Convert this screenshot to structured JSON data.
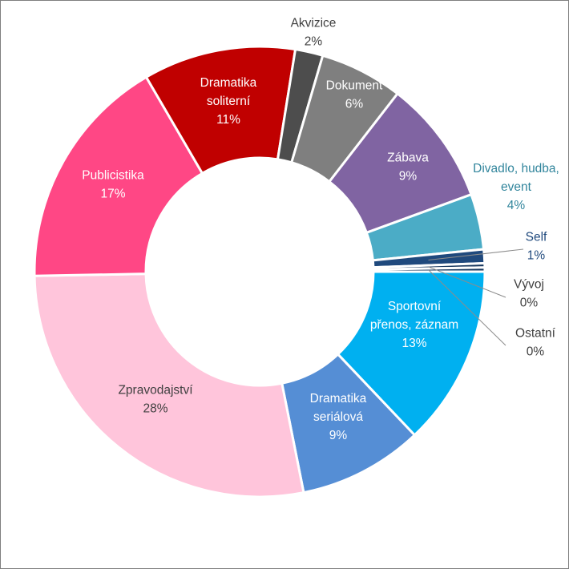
{
  "chart_data": {
    "type": "donut",
    "title": "",
    "start_angle_deg": 90,
    "direction": "clockwise",
    "slices": [
      {
        "label": "Sportovní přenos, záznam",
        "lines": [
          "Sportovní",
          "přenos, záznam"
        ],
        "value": 13,
        "value_label": "13%",
        "color": "#00b0f0",
        "label_color": "#ffffff"
      },
      {
        "label": "Dramatika seriálová",
        "lines": [
          "Dramatika",
          "seriálová"
        ],
        "value": 9,
        "value_label": "9%",
        "color": "#558ed5",
        "label_color": "#ffffff"
      },
      {
        "label": "Zpravodajství",
        "lines": [
          "Zpravodajství"
        ],
        "value": 28,
        "value_label": "28%",
        "color": "#ffc5db",
        "label_color": "#404040"
      },
      {
        "label": "Publicistika",
        "lines": [
          "Publicistika"
        ],
        "value": 17,
        "value_label": "17%",
        "color": "#ff4785",
        "label_color": "#ffffff"
      },
      {
        "label": "Dramatika soliterní",
        "lines": [
          "Dramatika",
          "soliterní"
        ],
        "value": 11,
        "value_label": "11%",
        "color": "#c00000",
        "label_color": "#ffffff"
      },
      {
        "label": "Akvizice",
        "lines": [
          "Akvizice"
        ],
        "value": 2,
        "value_label": "2%",
        "color": "#4d4d4d",
        "label_color": "#404040"
      },
      {
        "label": "Dokument",
        "lines": [
          "Dokument"
        ],
        "value": 6,
        "value_label": "6%",
        "color": "#7f7f7f",
        "label_color": "#ffffff"
      },
      {
        "label": "Zábava",
        "lines": [
          "Zábava"
        ],
        "value": 9,
        "value_label": "9%",
        "color": "#8064a2",
        "label_color": "#ffffff"
      },
      {
        "label": "Divadlo, hudba, event",
        "lines": [
          "Divadlo, hudba,",
          "event"
        ],
        "value": 4,
        "value_label": "4%",
        "color": "#4bacc6",
        "label_color": "#31859c"
      },
      {
        "label": "Self",
        "lines": [
          "Self"
        ],
        "value": 1,
        "value_label": "1%",
        "color": "#1f497d",
        "label_color": "#1f497d"
      },
      {
        "label": "Vývoj",
        "lines": [
          "Vývoj"
        ],
        "value": 0.3,
        "value_label": "0%",
        "color": "#17375e",
        "label_color": "#404040"
      },
      {
        "label": "Ostatní",
        "lines": [
          "Ostatní"
        ],
        "value": 0.3,
        "value_label": "0%",
        "color": "#17375e",
        "label_color": "#404040"
      }
    ]
  }
}
